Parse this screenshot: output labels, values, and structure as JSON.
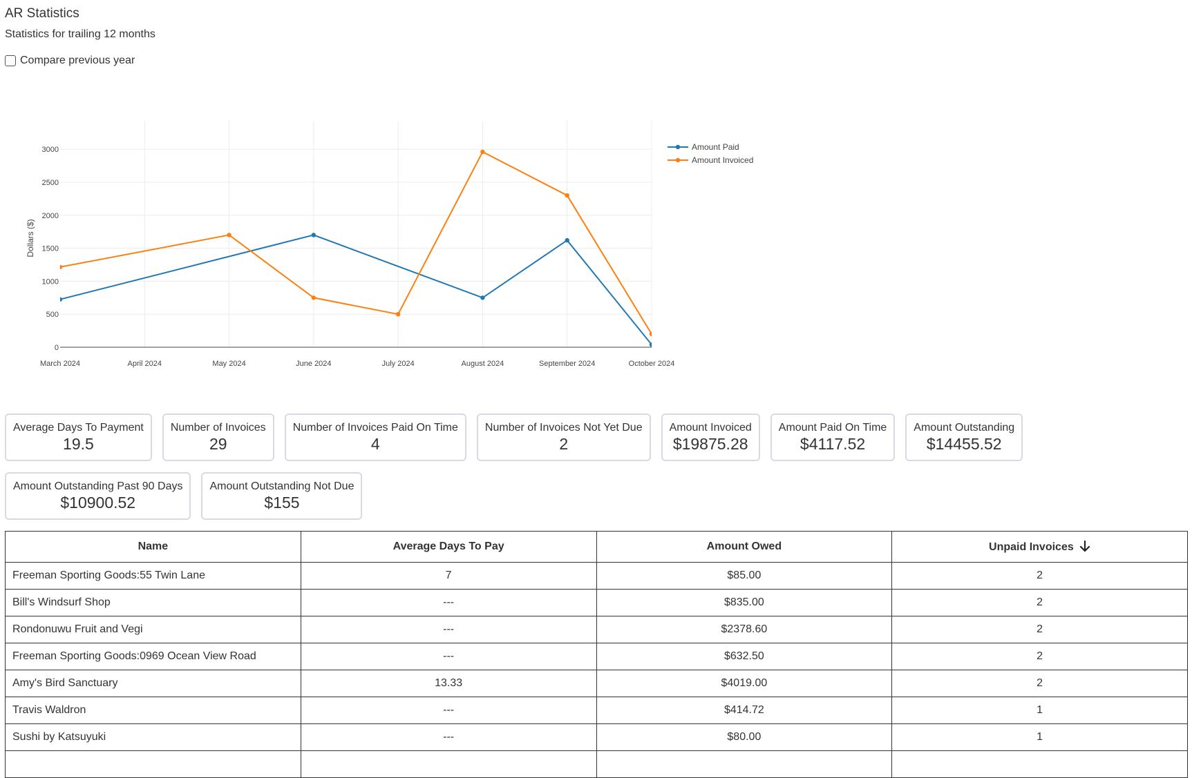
{
  "page": {
    "title": "AR Statistics",
    "subtitle": "Statistics for trailing 12 months",
    "compare_label": "Compare previous year",
    "compare_checked": false
  },
  "chart_data": {
    "type": "line",
    "categories": [
      "March 2024",
      "April 2024",
      "May 2024",
      "June 2024",
      "July 2024",
      "August 2024",
      "September 2024",
      "October 2024"
    ],
    "series": [
      {
        "name": "Amount Paid",
        "color": "#1f77b4",
        "values": [
          725,
          null,
          null,
          1700,
          null,
          750,
          1620,
          40
        ]
      },
      {
        "name": "Amount Invoiced",
        "color": "#ff7f0e",
        "values": [
          1215,
          null,
          1700,
          750,
          500,
          2960,
          2300,
          200
        ]
      }
    ],
    "ylabel": "Dollars ($)",
    "ylim": [
      0,
      3200
    ],
    "yticks": [
      0,
      500,
      1000,
      1500,
      2000,
      2500,
      3000
    ],
    "grid": true,
    "legend_position": "top-right"
  },
  "stats": {
    "row1": [
      {
        "label": "Average Days To Payment",
        "value": "19.5"
      },
      {
        "label": "Number of Invoices",
        "value": "29"
      },
      {
        "label": "Number of Invoices Paid On Time",
        "value": "4"
      },
      {
        "label": "Number of Invoices Not Yet Due",
        "value": "2"
      },
      {
        "label": "Amount Invoiced",
        "value": "$19875.28"
      },
      {
        "label": "Amount Paid On Time",
        "value": "$4117.52"
      },
      {
        "label": "Amount Outstanding",
        "value": "$14455.52"
      }
    ],
    "row2": [
      {
        "label": "Amount Outstanding Past 90 Days",
        "value": "$10900.52"
      },
      {
        "label": "Amount Outstanding Not Due",
        "value": "$155"
      }
    ]
  },
  "table": {
    "columns": [
      "Name",
      "Average Days To Pay",
      "Amount Owed",
      "Unpaid Invoices"
    ],
    "sort_icon": "arrow-down-icon",
    "rows": [
      [
        "Freeman Sporting Goods:55 Twin Lane",
        "7",
        "$85.00",
        "2"
      ],
      [
        "Bill's Windsurf Shop",
        "---",
        "$835.00",
        "2"
      ],
      [
        "Rondonuwu Fruit and Vegi",
        "---",
        "$2378.60",
        "2"
      ],
      [
        "Freeman Sporting Goods:0969 Ocean View Road",
        "---",
        "$632.50",
        "2"
      ],
      [
        "Amy's Bird Sanctuary",
        "13.33",
        "$4019.00",
        "2"
      ],
      [
        "Travis Waldron",
        "---",
        "$414.72",
        "1"
      ],
      [
        "Sushi by Katsuyuki",
        "---",
        "$80.00",
        "1"
      ],
      [
        "",
        "",
        "",
        ""
      ]
    ]
  }
}
